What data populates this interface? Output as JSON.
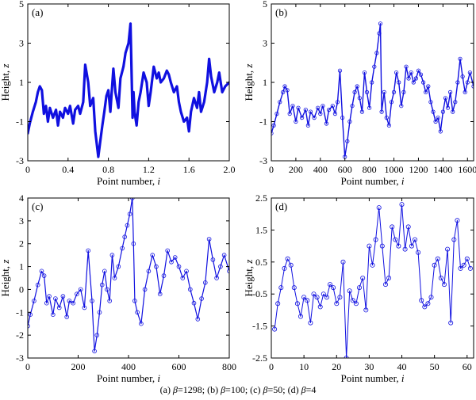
{
  "caption": {
    "a": "(a) ",
    "b": "; (b) ",
    "c": "; (c) ",
    "d": "; (d) ",
    "beta": "β",
    "va": "=1298",
    "vb": "=100",
    "vc": "=50",
    "vd": "=4"
  },
  "chart_data": [
    {
      "type": "line",
      "panel": "(a)",
      "xlabel": "Point number,",
      "xlabel_var": "i",
      "ylabel": "Height,",
      "ylabel_var": "z",
      "xlim": [
        0,
        2.0
      ],
      "ylim": [
        -3,
        5
      ],
      "xticks": [
        0,
        0.4,
        0.8,
        1.2,
        1.6,
        2.0
      ],
      "xtick_labels": [
        "0",
        "0.4",
        "0.8",
        "1.2",
        "1.6",
        "2.0"
      ],
      "yticks": [
        -3,
        -1,
        1,
        3,
        5
      ],
      "ytick_labels": [
        "-3",
        "-1",
        "1",
        "3",
        "5"
      ],
      "markers": false,
      "line_width": 3.2,
      "color": "#1010e0",
      "x": [
        0,
        0.02,
        0.05,
        0.08,
        0.1,
        0.12,
        0.14,
        0.16,
        0.18,
        0.2,
        0.22,
        0.25,
        0.28,
        0.3,
        0.32,
        0.35,
        0.37,
        0.4,
        0.42,
        0.45,
        0.47,
        0.5,
        0.52,
        0.55,
        0.57,
        0.6,
        0.62,
        0.65,
        0.67,
        0.7,
        0.72,
        0.74,
        0.76,
        0.78,
        0.8,
        0.82,
        0.85,
        0.87,
        0.9,
        0.92,
        0.95,
        0.97,
        1.0,
        1.02,
        1.04,
        1.05,
        1.06,
        1.08,
        1.1,
        1.12,
        1.15,
        1.18,
        1.2,
        1.22,
        1.25,
        1.28,
        1.3,
        1.32,
        1.35,
        1.38,
        1.4,
        1.42,
        1.45,
        1.48,
        1.5,
        1.52,
        1.55,
        1.58,
        1.6,
        1.62,
        1.65,
        1.68,
        1.7,
        1.72,
        1.75,
        1.78,
        1.8,
        1.82,
        1.85,
        1.88,
        1.9,
        1.93,
        1.96,
        2.0
      ],
      "y": [
        -1.6,
        -1.1,
        -0.5,
        0.0,
        0.5,
        0.8,
        0.6,
        -0.6,
        -0.2,
        -1.0,
        -0.3,
        -0.8,
        -0.4,
        -1.2,
        -0.5,
        -0.8,
        -0.3,
        -0.6,
        -0.2,
        -1.1,
        -0.4,
        -0.2,
        -0.6,
        0.0,
        1.9,
        1.0,
        -0.2,
        0.2,
        -1.5,
        -2.8,
        -2.0,
        -1.2,
        -0.5,
        0.3,
        0.6,
        -0.5,
        1.7,
        0.5,
        -0.3,
        1.2,
        1.8,
        2.5,
        3.0,
        4.0,
        -0.8,
        0.5,
        -0.5,
        -1.2,
        0.0,
        0.5,
        1.5,
        1.0,
        -0.2,
        0.5,
        1.8,
        1.2,
        1.5,
        1.0,
        1.2,
        1.6,
        1.4,
        1.0,
        0.5,
        0.8,
        0.0,
        -0.5,
        -1.0,
        -0.8,
        -1.5,
        -0.5,
        0.2,
        -0.3,
        0.5,
        -0.5,
        0.0,
        1.0,
        2.2,
        1.3,
        0.5,
        1.0,
        1.5,
        0.5,
        0.8,
        1.0
      ]
    },
    {
      "type": "line",
      "panel": "(b)",
      "xlabel": "Point number,",
      "xlabel_var": "i",
      "ylabel": "Height,",
      "ylabel_var": "z",
      "xlim": [
        0,
        1650
      ],
      "ylim": [
        -3,
        5
      ],
      "xticks": [
        0,
        200,
        400,
        600,
        800,
        1000,
        1200,
        1400,
        1600
      ],
      "xtick_labels": [
        "0",
        "200",
        "400",
        "600",
        "800",
        "1000",
        "1200",
        "1400",
        "1600"
      ],
      "yticks": [
        -3,
        -1,
        1,
        3,
        5
      ],
      "ytick_labels": [
        "-3",
        "-1",
        "1",
        "3",
        "5"
      ],
      "markers": true,
      "marker_size": 2.2,
      "line_width": 1.4,
      "color": "#1010e0",
      "x": [
        0,
        20,
        45,
        70,
        95,
        110,
        130,
        150,
        175,
        200,
        220,
        250,
        280,
        300,
        320,
        350,
        380,
        400,
        420,
        450,
        470,
        500,
        520,
        540,
        560,
        580,
        600,
        620,
        640,
        660,
        680,
        700,
        720,
        740,
        760,
        780,
        800,
        820,
        840,
        860,
        880,
        890,
        900,
        920,
        940,
        960,
        980,
        1000,
        1020,
        1040,
        1060,
        1080,
        1100,
        1120,
        1140,
        1160,
        1180,
        1200,
        1220,
        1240,
        1260,
        1280,
        1300,
        1320,
        1340,
        1360,
        1380,
        1400,
        1420,
        1440,
        1460,
        1480,
        1500,
        1520,
        1540,
        1560,
        1580,
        1600,
        1620,
        1650
      ],
      "y": [
        -1.6,
        -1.2,
        -0.6,
        0.0,
        0.5,
        0.8,
        0.6,
        -0.6,
        -0.2,
        -1.0,
        -0.3,
        -0.8,
        -0.4,
        -1.2,
        -0.5,
        -0.8,
        -0.3,
        -0.6,
        -0.2,
        -1.1,
        -0.4,
        -0.2,
        -0.6,
        0.0,
        1.6,
        -0.8,
        -2.8,
        -2.0,
        -1.0,
        -0.2,
        0.5,
        0.8,
        0.2,
        -0.5,
        1.5,
        0.5,
        -0.3,
        1.0,
        1.8,
        2.5,
        3.5,
        4.0,
        -0.5,
        0.5,
        -0.8,
        -1.2,
        0.0,
        0.5,
        1.5,
        1.0,
        -0.2,
        0.5,
        1.8,
        1.2,
        1.5,
        1.0,
        1.2,
        1.6,
        1.4,
        1.0,
        0.5,
        0.8,
        0.0,
        -0.5,
        -1.0,
        -0.8,
        -1.5,
        -0.5,
        0.2,
        -0.3,
        0.5,
        -0.5,
        0.0,
        1.0,
        2.2,
        1.3,
        0.5,
        1.0,
        1.5,
        0.8
      ]
    },
    {
      "type": "line",
      "panel": "(c)",
      "xlabel": "Point number,",
      "xlabel_var": "i",
      "ylabel": "Height,",
      "ylabel_var": "z",
      "xlim": [
        0,
        800
      ],
      "ylim": [
        -3,
        4
      ],
      "xticks": [
        0,
        200,
        400,
        600,
        800
      ],
      "xtick_labels": [
        "0",
        "200",
        "400",
        "600",
        "800"
      ],
      "yticks": [
        -3,
        -2,
        -1,
        0,
        1,
        2,
        3,
        4
      ],
      "ytick_labels": [
        "-3",
        "-2",
        "-1",
        "0",
        "1",
        "2",
        "3",
        "4"
      ],
      "markers": true,
      "marker_size": 2.4,
      "line_width": 1.2,
      "color": "#1010e0",
      "x": [
        0,
        10,
        25,
        40,
        55,
        65,
        75,
        85,
        100,
        110,
        125,
        140,
        155,
        165,
        180,
        195,
        210,
        225,
        240,
        255,
        265,
        275,
        285,
        295,
        305,
        315,
        325,
        335,
        345,
        360,
        375,
        385,
        395,
        405,
        415,
        420,
        425,
        435,
        450,
        465,
        480,
        495,
        510,
        525,
        540,
        555,
        570,
        585,
        600,
        615,
        630,
        645,
        660,
        675,
        690,
        705,
        720,
        735,
        750,
        765,
        780,
        800
      ],
      "y": [
        -1.6,
        -1.1,
        -0.5,
        0.2,
        0.8,
        0.6,
        -0.6,
        -0.3,
        -1.1,
        -0.4,
        -0.8,
        -0.3,
        -1.2,
        -0.5,
        -0.6,
        -0.2,
        0.0,
        -0.8,
        1.7,
        -0.5,
        -2.7,
        -2.0,
        -1.0,
        0.2,
        0.8,
        0.0,
        -0.5,
        1.5,
        0.5,
        1.0,
        1.8,
        2.3,
        2.8,
        3.3,
        4.0,
        2.0,
        -0.5,
        -1.0,
        -1.5,
        0.0,
        0.8,
        1.5,
        1.0,
        -0.2,
        0.6,
        1.7,
        1.2,
        1.4,
        1.0,
        0.5,
        0.8,
        0.0,
        -0.6,
        -1.3,
        -0.4,
        0.3,
        2.2,
        1.3,
        0.5,
        1.0,
        1.5,
        0.8
      ]
    },
    {
      "type": "line",
      "panel": "(d)",
      "xlabel": "Point number,",
      "xlabel_var": "i",
      "ylabel": "Height,",
      "ylabel_var": "z",
      "xlim": [
        0,
        62
      ],
      "ylim": [
        -2.5,
        2.5
      ],
      "xticks": [
        0,
        10,
        20,
        30,
        40,
        50,
        60
      ],
      "xtick_labels": [
        "0",
        "10",
        "20",
        "30",
        "40",
        "50",
        "60"
      ],
      "yticks": [
        -2.5,
        -1.5,
        -0.5,
        0.5,
        1.5,
        2.5
      ],
      "ytick_labels": [
        "-2.5",
        "-1.5",
        "-0.5",
        "0.5",
        "1.5",
        "2.5"
      ],
      "markers": true,
      "marker_size": 2.6,
      "line_width": 1.0,
      "color": "#1010e0",
      "x": [
        1,
        2,
        3,
        4,
        5,
        6,
        7,
        8,
        9,
        10,
        11,
        12,
        13,
        14,
        15,
        16,
        17,
        18,
        19,
        20,
        21,
        22,
        23,
        24,
        25,
        26,
        27,
        28,
        29,
        30,
        31,
        32,
        33,
        34,
        35,
        36,
        37,
        38,
        39,
        40,
        41,
        42,
        43,
        44,
        45,
        46,
        47,
        48,
        49,
        50,
        51,
        52,
        53,
        54,
        55,
        56,
        57,
        58,
        59,
        60,
        61
      ],
      "y": [
        -1.6,
        -0.8,
        -0.3,
        0.3,
        0.6,
        0.4,
        -0.3,
        -0.8,
        -1.2,
        -0.6,
        -0.7,
        -1.4,
        -0.5,
        -0.6,
        -0.9,
        -0.5,
        -0.6,
        -0.2,
        -0.3,
        -0.8,
        -0.6,
        0.5,
        -2.5,
        -0.4,
        -0.7,
        -0.8,
        -0.3,
        0.0,
        -1.0,
        1.0,
        0.4,
        1.2,
        2.2,
        1.0,
        -0.2,
        0.0,
        1.6,
        1.2,
        1.0,
        2.3,
        0.9,
        1.6,
        1.0,
        1.2,
        0.8,
        -0.7,
        -0.9,
        -0.8,
        -0.6,
        0.4,
        0.6,
        0.0,
        -0.2,
        0.9,
        -1.4,
        1.2,
        1.8,
        0.3,
        0.4,
        0.6,
        0.3
      ]
    }
  ]
}
